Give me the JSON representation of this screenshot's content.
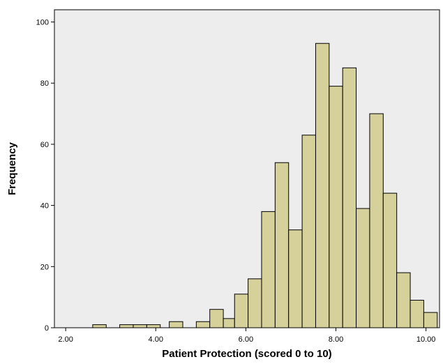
{
  "chart_data": {
    "type": "bar",
    "title": "",
    "xlabel": "Patient Protection (scored 0 to 10)",
    "ylabel": "Frequency",
    "xlim": [
      1.75,
      10.3
    ],
    "ylim": [
      0,
      104
    ],
    "x_ticks": [
      2,
      4,
      6,
      8,
      10
    ],
    "x_tick_labels": [
      "2.00",
      "4.00",
      "6.00",
      "8.00",
      "10.00"
    ],
    "y_ticks": [
      0,
      20,
      40,
      60,
      80,
      100
    ],
    "y_tick_labels": [
      "0",
      "20",
      "40",
      "60",
      "80",
      "100"
    ],
    "grid": false,
    "bar_color": "#d6d19b",
    "plot_background": "#ededed",
    "bins": [
      {
        "from": 2.6,
        "to": 2.9,
        "count": 1
      },
      {
        "from": 3.2,
        "to": 3.5,
        "count": 1
      },
      {
        "from": 3.5,
        "to": 3.8,
        "count": 1
      },
      {
        "from": 3.8,
        "to": 4.1,
        "count": 1
      },
      {
        "from": 4.3,
        "to": 4.6,
        "count": 2
      },
      {
        "from": 4.9,
        "to": 5.2,
        "count": 2
      },
      {
        "from": 5.2,
        "to": 5.5,
        "count": 6
      },
      {
        "from": 5.5,
        "to": 5.75,
        "count": 3
      },
      {
        "from": 5.75,
        "to": 6.05,
        "count": 11
      },
      {
        "from": 6.05,
        "to": 6.35,
        "count": 16
      },
      {
        "from": 6.35,
        "to": 6.65,
        "count": 38
      },
      {
        "from": 6.65,
        "to": 6.95,
        "count": 54
      },
      {
        "from": 6.95,
        "to": 7.25,
        "count": 32
      },
      {
        "from": 7.25,
        "to": 7.55,
        "count": 63
      },
      {
        "from": 7.55,
        "to": 7.85,
        "count": 93
      },
      {
        "from": 7.85,
        "to": 8.15,
        "count": 79
      },
      {
        "from": 8.15,
        "to": 8.45,
        "count": 85
      },
      {
        "from": 8.45,
        "to": 8.75,
        "count": 39
      },
      {
        "from": 8.75,
        "to": 9.05,
        "count": 70
      },
      {
        "from": 9.05,
        "to": 9.35,
        "count": 44
      },
      {
        "from": 9.35,
        "to": 9.65,
        "count": 18
      },
      {
        "from": 9.65,
        "to": 9.95,
        "count": 9
      },
      {
        "from": 9.95,
        "to": 10.25,
        "count": 5
      }
    ]
  }
}
